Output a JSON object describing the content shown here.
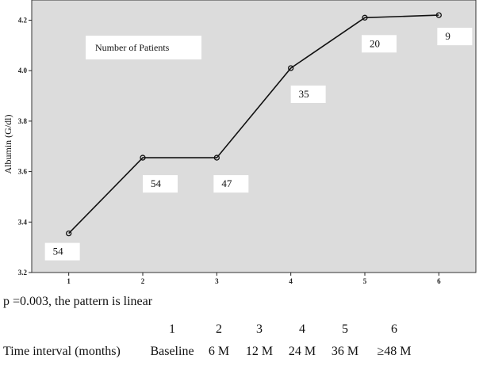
{
  "chart_data": {
    "type": "line",
    "x": [
      1,
      2,
      3,
      4,
      5,
      6
    ],
    "y": [
      3.355,
      3.655,
      3.655,
      4.01,
      4.21,
      4.22
    ],
    "xlim": [
      0.5,
      6.5
    ],
    "ylim": [
      3.2,
      4.28
    ],
    "xticks": [
      "1",
      "2",
      "3",
      "4",
      "5",
      "6"
    ],
    "yticks": [
      "3.2",
      "3.4",
      "3.6",
      "3.8",
      "4.0",
      "4.2"
    ],
    "ylabel": "Albumin (G/dl)",
    "xlabel": "",
    "legend_label": "Number of Patients",
    "annotations": [
      "54",
      "54",
      "47",
      "35",
      "20",
      "9"
    ],
    "background": "#dcdcdc",
    "line_color": "#111111",
    "grid": false
  },
  "note": "p =0.003, the pattern is linear",
  "interval_table": {
    "numbers": [
      "1",
      "2",
      "3",
      "4",
      "5",
      "6"
    ],
    "row_label": "Time interval (months)",
    "labels": [
      "Baseline",
      "6 M",
      "12 M",
      "24 M",
      "36 M",
      "≥48 M"
    ]
  }
}
